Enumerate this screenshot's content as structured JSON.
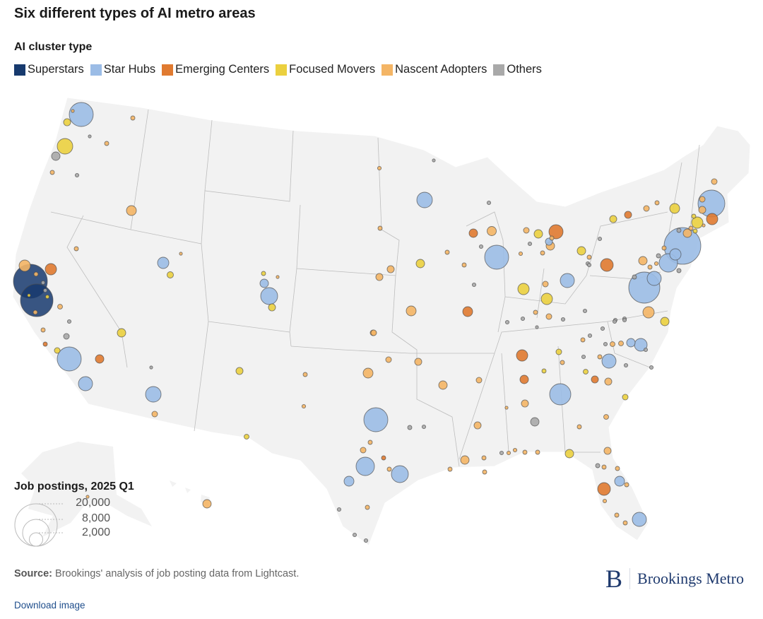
{
  "title": "Six different types of AI metro areas",
  "legend": {
    "title": "AI cluster type",
    "items": [
      {
        "key": "sup",
        "label": "Superstars",
        "color": "#173a6e"
      },
      {
        "key": "hub",
        "label": "Star Hubs",
        "color": "#9bbce6"
      },
      {
        "key": "eme",
        "label": "Emerging Centers",
        "color": "#e07a30"
      },
      {
        "key": "foc",
        "label": "Focused Movers",
        "color": "#ebd03f"
      },
      {
        "key": "nas",
        "label": "Nascent Adopters",
        "color": "#f4b565"
      },
      {
        "key": "oth",
        "label": "Others",
        "color": "#a9a9a9"
      }
    ]
  },
  "size_legend": {
    "title": "Job postings, 2025 Q1",
    "values": [
      20000,
      8000,
      2000
    ],
    "labels": [
      "20,000",
      "8,000",
      "2,000"
    ]
  },
  "bubbles": [
    [
      "sup",
      12800
    ],
    [
      "sup",
      11760
    ],
    [
      "nas",
      1420
    ],
    [
      "eme",
      1420
    ],
    [
      "nas",
      200
    ],
    [
      "oth",
      150
    ],
    [
      "oth",
      150
    ],
    [
      "foc",
      100
    ],
    [
      "foc",
      150
    ],
    [
      "nas",
      200
    ],
    [
      "nas",
      270
    ],
    [
      "oth",
      150
    ],
    [
      "nas",
      200
    ],
    [
      "oth",
      360
    ],
    [
      "eme",
      200
    ],
    [
      "foc",
      360
    ],
    [
      "hub",
      6420
    ],
    [
      "eme",
      800
    ],
    [
      "hub",
      2220
    ],
    [
      "nas",
      200
    ],
    [
      "foc",
      800
    ],
    [
      "hub",
      6420
    ],
    [
      "nas",
      100
    ],
    [
      "foc",
      560
    ],
    [
      "foc",
      2690
    ],
    [
      "oth",
      800
    ],
    [
      "nas",
      200
    ],
    [
      "oth",
      150
    ],
    [
      "oth",
      100
    ],
    [
      "nas",
      200
    ],
    [
      "nas",
      200
    ],
    [
      "nas",
      1090
    ],
    [
      "hub",
      1420
    ],
    [
      "nas",
      100
    ],
    [
      "foc",
      450
    ],
    [
      "hub",
      3200
    ],
    [
      "hub",
      800
    ],
    [
      "foc",
      200
    ],
    [
      "foc",
      560
    ],
    [
      "nas",
      100
    ],
    [
      "oth",
      100
    ],
    [
      "hub",
      2690
    ],
    [
      "nas",
      360
    ],
    [
      "foc",
      560
    ],
    [
      "nas",
      200
    ],
    [
      "nas",
      150
    ],
    [
      "foc",
      270
    ],
    [
      "hub",
      6420
    ],
    [
      "nas",
      360
    ],
    [
      "nas",
      1090
    ],
    [
      "nas",
      360
    ],
    [
      "nas",
      560
    ],
    [
      "nas",
      800
    ],
    [
      "hub",
      3760
    ],
    [
      "hub",
      3200
    ],
    [
      "hub",
      1090
    ],
    [
      "nas",
      360
    ],
    [
      "nas",
      200
    ],
    [
      "eme",
      200
    ],
    [
      "nas",
      200
    ],
    [
      "oth",
      200
    ],
    [
      "oth",
      150
    ],
    [
      "oth",
      150
    ],
    [
      "nas",
      200
    ],
    [
      "oth",
      150
    ],
    [
      "oth",
      150
    ],
    [
      "nas",
      800
    ],
    [
      "nas",
      100
    ],
    [
      "hub",
      2690
    ],
    [
      "oth",
      100
    ],
    [
      "nas",
      150
    ],
    [
      "oth",
      150
    ],
    [
      "nas",
      200
    ],
    [
      "eme",
      800
    ],
    [
      "nas",
      940
    ],
    [
      "nas",
      200
    ],
    [
      "foc",
      800
    ],
    [
      "nas",
      560
    ],
    [
      "nas",
      560
    ],
    [
      "nas",
      200
    ],
    [
      "hub",
      6420
    ],
    [
      "oth",
      150
    ],
    [
      "nas",
      1090
    ],
    [
      "eme",
      1090
    ],
    [
      "nas",
      360
    ],
    [
      "oth",
      150
    ],
    [
      "nas",
      360
    ],
    [
      "foc",
      800
    ],
    [
      "eme",
      2220
    ],
    [
      "nas",
      200
    ],
    [
      "nas",
      800
    ],
    [
      "hub",
      560
    ],
    [
      "nas",
      150
    ],
    [
      "nas",
      200
    ],
    [
      "oth",
      150
    ],
    [
      "oth",
      150
    ],
    [
      "foc",
      800
    ],
    [
      "nas",
      200
    ],
    [
      "hub",
      2220
    ],
    [
      "foc",
      1420
    ],
    [
      "nas",
      360
    ],
    [
      "foc",
      1420
    ],
    [
      "nas",
      360
    ],
    [
      "oth",
      150
    ],
    [
      "oth",
      150
    ],
    [
      "nas",
      200
    ],
    [
      "oth",
      100
    ],
    [
      "oth",
      150
    ],
    [
      "oth",
      150
    ],
    [
      "oth",
      150
    ],
    [
      "oth",
      150
    ],
    [
      "oth",
      150
    ],
    [
      "oth",
      150
    ],
    [
      "hub",
      8020
    ],
    [
      "nas",
      360
    ],
    [
      "nas",
      360
    ],
    [
      "nas",
      560
    ],
    [
      "eme",
      1420
    ],
    [
      "foc",
      1420
    ],
    [
      "foc",
      200
    ],
    [
      "nas",
      100
    ],
    [
      "foc",
      200
    ],
    [
      "nas",
      200
    ],
    [
      "nas",
      800
    ],
    [
      "oth",
      200
    ],
    [
      "hub",
      15000
    ],
    [
      "hub",
      1420
    ],
    [
      "hub",
      3760
    ],
    [
      "nas",
      200
    ],
    [
      "oth",
      200
    ],
    [
      "nas",
      150
    ],
    [
      "nas",
      200
    ],
    [
      "nas",
      800
    ],
    [
      "oth",
      200
    ],
    [
      "eme",
      1800
    ],
    [
      "oth",
      150
    ],
    [
      "oth",
      150
    ],
    [
      "foc",
      560
    ],
    [
      "eme",
      560
    ],
    [
      "nas",
      360
    ],
    [
      "nas",
      200
    ],
    [
      "foc",
      1090
    ],
    [
      "hub",
      10760
    ],
    [
      "hub",
      2220
    ],
    [
      "oth",
      200
    ],
    [
      "nas",
      1420
    ],
    [
      "foc",
      800
    ],
    [
      "oth",
      150
    ],
    [
      "oth",
      150
    ],
    [
      "hub",
      1800
    ],
    [
      "hub",
      800
    ],
    [
      "nas",
      270
    ],
    [
      "nas",
      270
    ],
    [
      "oth",
      150
    ],
    [
      "hub",
      2220
    ],
    [
      "nas",
      200
    ],
    [
      "oth",
      150
    ],
    [
      "foc",
      270
    ],
    [
      "oth",
      150
    ],
    [
      "oth",
      150
    ],
    [
      "oth",
      150
    ],
    [
      "nas",
      560
    ],
    [
      "eme",
      560
    ],
    [
      "foc",
      360
    ],
    [
      "nas",
      270
    ],
    [
      "hub",
      5000
    ],
    [
      "eme",
      800
    ],
    [
      "eme",
      1420
    ],
    [
      "foc",
      200
    ],
    [
      "foc",
      360
    ],
    [
      "nas",
      200
    ],
    [
      "nas",
      200
    ],
    [
      "nas",
      560
    ],
    [
      "nas",
      100
    ],
    [
      "oth",
      800
    ],
    [
      "nas",
      560
    ],
    [
      "nas",
      360
    ],
    [
      "nas",
      150
    ],
    [
      "nas",
      150
    ],
    [
      "nas",
      200
    ],
    [
      "nas",
      200
    ],
    [
      "foc",
      800
    ],
    [
      "nas",
      800
    ],
    [
      "nas",
      200
    ],
    [
      "nas",
      200
    ],
    [
      "nas",
      200
    ],
    [
      "oth",
      150
    ],
    [
      "nas",
      560
    ],
    [
      "oth",
      200
    ],
    [
      "nas",
      200
    ],
    [
      "nas",
      200
    ],
    [
      "hub",
      1090
    ],
    [
      "eme",
      1800
    ],
    [
      "nas",
      200
    ],
    [
      "nas",
      150
    ],
    [
      "nas",
      200
    ],
    [
      "nas",
      200
    ],
    [
      "hub",
      2220
    ],
    [
      "nas",
      200
    ]
  ],
  "source": {
    "label": "Source:",
    "text": "Brookings' analysis of job posting data from Lightcast."
  },
  "download_label": "Download image",
  "logo": {
    "mark": "B",
    "name": "Brookings Metro"
  }
}
